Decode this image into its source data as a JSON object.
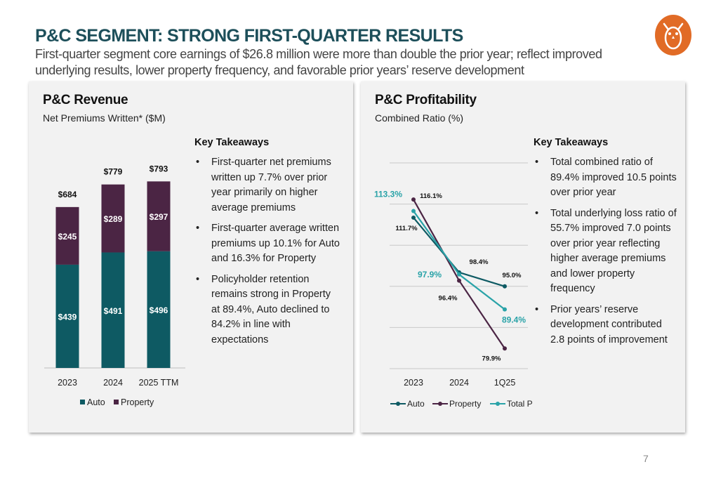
{
  "header": {
    "title": "P&C SEGMENT: STRONG FIRST-QUARTER RESULTS",
    "subtitle": "First-quarter segment core earnings of $26.8 million were more than double the prior year; reflect improved underlying results, lower property frequency, and favorable prior years’ reserve development"
  },
  "colors": {
    "auto": "#0e5a63",
    "property": "#4b2544",
    "total": "#2aa3a8",
    "title": "#1d4f5a",
    "logo": "#e16b26",
    "panel": "#f2f2f2"
  },
  "logo": {
    "icon": "owl-logo-icon"
  },
  "left_panel": {
    "title": "P&C Revenue",
    "subtitle": "Net Premiums Written* ($M)",
    "key_takeaways": {
      "heading": "Key Takeaways",
      "bullets": [
        "First-quarter net premiums written up 7.7% over prior year primarily on higher average premiums",
        "First-quarter average written premiums up 10.1% for Auto and 16.3% for Property",
        "Policyholder retention remains strong in Property at 89.4%, Auto declined to 84.2% in line with expectations"
      ]
    }
  },
  "right_panel": {
    "title": "P&C Profitability",
    "subtitle": "Combined Ratio (%)",
    "key_takeaways": {
      "heading": "Key Takeaways",
      "bullets": [
        "Total combined ratio of 89.4% improved 10.5 points over prior year",
        "Total underlying loss ratio of 55.7% improved 7.0 points over prior year reflecting higher average premiums and lower property frequency",
        "Prior years’ reserve development contributed 2.8 points of improvement"
      ]
    }
  },
  "page_number": "7",
  "chart_data": [
    {
      "type": "bar",
      "stacked": true,
      "categories": [
        "2023",
        "2024",
        "2025 TTM"
      ],
      "series": [
        {
          "name": "Auto",
          "values": [
            439,
            491,
            496
          ],
          "labels": [
            "$439",
            "$491",
            "$496"
          ]
        },
        {
          "name": "Property",
          "values": [
            245,
            289,
            297
          ],
          "labels": [
            "$245",
            "$289",
            "$297"
          ]
        }
      ],
      "totals": [
        684,
        779,
        793
      ],
      "total_labels": [
        "$684",
        "$779",
        "$793"
      ],
      "ylim": [
        0,
        850
      ],
      "grid": false,
      "legend": "bottom"
    },
    {
      "type": "line",
      "categories": [
        "2023",
        "2024",
        "1Q25"
      ],
      "series": [
        {
          "name": "Auto",
          "values": [
            111.7,
            98.4,
            95.0
          ],
          "labels": [
            "111.7%",
            "98.4%",
            "95.0%"
          ]
        },
        {
          "name": "Property",
          "values": [
            116.1,
            96.4,
            79.9
          ],
          "labels": [
            "116.1%",
            "96.4%",
            "79.9%"
          ]
        },
        {
          "name": "Total P&C",
          "values": [
            113.3,
            97.9,
            89.4
          ],
          "labels": [
            "113.3%",
            "97.9%",
            "89.4%"
          ]
        }
      ],
      "ylim": [
        75,
        125
      ],
      "grid": true,
      "legend": "bottom"
    }
  ]
}
